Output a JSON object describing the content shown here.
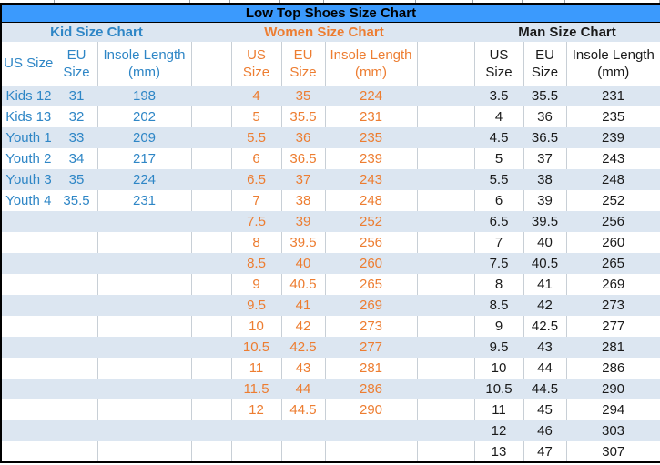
{
  "title": "Low Top Shoes Size Chart",
  "colors": {
    "title_bar_bg": "#3b9afd",
    "band_row_bg": "#dce6f1",
    "kid_text": "#2e86c6",
    "women_text": "#ed7d31",
    "man_text": "#1a1a1a",
    "cell_border": "#c8cfd6",
    "outer_border": "#000000"
  },
  "sections": {
    "kid": {
      "label": "Kid Size Chart",
      "headers": {
        "us": "US Size",
        "eu": "EU\nSize",
        "insole": "Insole Length\n(mm)"
      },
      "rows": [
        [
          "Kids 12",
          "31",
          "198"
        ],
        [
          "Kids 13",
          "32",
          "202"
        ],
        [
          "Youth 1",
          "33",
          "209"
        ],
        [
          "Youth 2",
          "34",
          "217"
        ],
        [
          "Youth 3",
          "35",
          "224"
        ],
        [
          "Youth 4",
          "35.5",
          "231"
        ]
      ]
    },
    "women": {
      "label": "Women Size Chart",
      "headers": {
        "us": "US\nSize",
        "eu": "EU\nSize",
        "insole": "Insole Length\n(mm)"
      },
      "rows": [
        [
          "4",
          "35",
          "224"
        ],
        [
          "5",
          "35.5",
          "231"
        ],
        [
          "5.5",
          "36",
          "235"
        ],
        [
          "6",
          "36.5",
          "239"
        ],
        [
          "6.5",
          "37",
          "243"
        ],
        [
          "7",
          "38",
          "248"
        ],
        [
          "7.5",
          "39",
          "252"
        ],
        [
          "8",
          "39.5",
          "256"
        ],
        [
          "8.5",
          "40",
          "260"
        ],
        [
          "9",
          "40.5",
          "265"
        ],
        [
          "9.5",
          "41",
          "269"
        ],
        [
          "10",
          "42",
          "273"
        ],
        [
          "10.5",
          "42.5",
          "277"
        ],
        [
          "11",
          "43",
          "281"
        ],
        [
          "11.5",
          "44",
          "286"
        ],
        [
          "12",
          "44.5",
          "290"
        ]
      ]
    },
    "man": {
      "label": "Man Size Chart",
      "headers": {
        "us": "US\nSize",
        "eu": "EU\nSize",
        "insole": "Insole Length\n(mm)"
      },
      "rows": [
        [
          "3.5",
          "35.5",
          "231"
        ],
        [
          "4",
          "36",
          "235"
        ],
        [
          "4.5",
          "36.5",
          "239"
        ],
        [
          "5",
          "37",
          "243"
        ],
        [
          "5.5",
          "38",
          "248"
        ],
        [
          "6",
          "39",
          "252"
        ],
        [
          "6.5",
          "39.5",
          "256"
        ],
        [
          "7",
          "40",
          "260"
        ],
        [
          "7.5",
          "40.5",
          "265"
        ],
        [
          "8",
          "41",
          "269"
        ],
        [
          "8.5",
          "42",
          "273"
        ],
        [
          "9",
          "42.5",
          "277"
        ],
        [
          "9.5",
          "43",
          "281"
        ],
        [
          "10",
          "44",
          "286"
        ],
        [
          "10.5",
          "44.5",
          "290"
        ],
        [
          "11",
          "45",
          "294"
        ],
        [
          "12",
          "46",
          "303"
        ],
        [
          "13",
          "47",
          "307"
        ]
      ]
    }
  }
}
